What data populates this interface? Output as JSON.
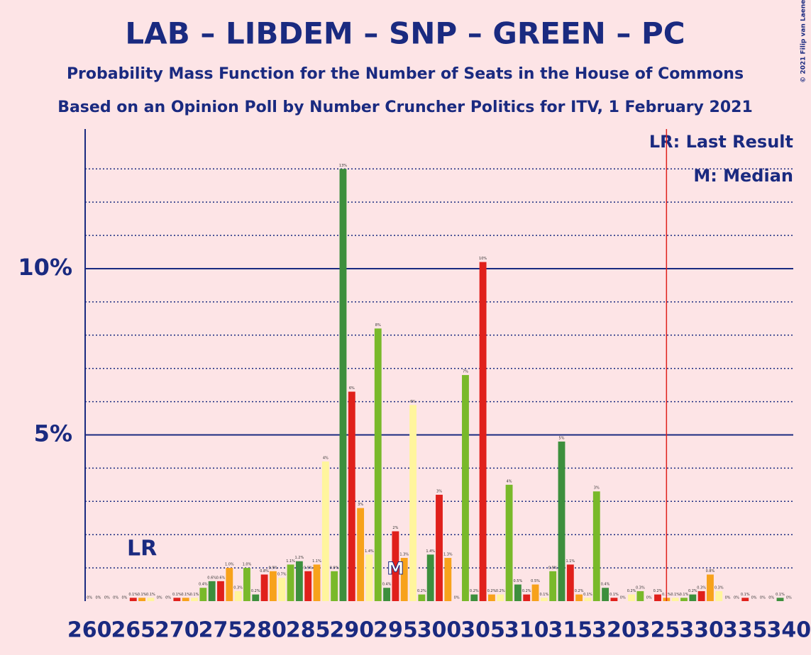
{
  "chart_data": {
    "type": "bar",
    "title": "LAB – LIBDEM – SNP – GREEN – PC",
    "subtitle": "Probability Mass Function for the Number of Seats in the House of Commons",
    "subtitle2": "Based on an Opinion Poll by Number Cruncher Politics for ITV, 1 February 2021",
    "copyright": "© 2021 Filip van Laenen",
    "legend": [
      "LR: Last Result",
      "M: Median"
    ],
    "last_result": {
      "x": 266,
      "label": "LR"
    },
    "median": {
      "x": 295,
      "label": "M"
    },
    "threshold_line": 326,
    "x": [
      260,
      261,
      262,
      263,
      264,
      265,
      266,
      267,
      268,
      269,
      270,
      271,
      272,
      273,
      274,
      275,
      276,
      277,
      278,
      279,
      280,
      281,
      282,
      283,
      284,
      285,
      286,
      287,
      288,
      289,
      290,
      291,
      292,
      293,
      294,
      295,
      296,
      297,
      298,
      299,
      300,
      301,
      302,
      303,
      304,
      305,
      306,
      307,
      308,
      309,
      310,
      311,
      312,
      313,
      314,
      315,
      316,
      317,
      318,
      319,
      320,
      321,
      322,
      323,
      324,
      325,
      326,
      327,
      328,
      329,
      330,
      331,
      332,
      333,
      334,
      335,
      336,
      337,
      338,
      339,
      340
    ],
    "values": [
      0,
      0,
      0,
      0,
      0,
      0.1,
      0.1,
      0.1,
      0,
      0,
      0.1,
      0.1,
      0.1,
      0.4,
      0.6,
      0.6,
      1.0,
      0.3,
      1.0,
      0.2,
      0.8,
      0.9,
      0.7,
      1.1,
      1.2,
      0.9,
      1.1,
      4.2,
      0.9,
      13.0,
      6.3,
      2.8,
      1.4,
      8.2,
      0.4,
      2.1,
      1.3,
      5.9,
      0.2,
      1.4,
      3.2,
      1.3,
      0,
      6.8,
      0.2,
      10.2,
      0.2,
      0.2,
      3.5,
      0.5,
      0.2,
      0.5,
      0.1,
      0.9,
      4.8,
      1.1,
      0.2,
      0.1,
      3.3,
      0.4,
      0.1,
      0,
      0.2,
      0.3,
      0,
      0.2,
      0.1,
      0.1,
      0.1,
      0.2,
      0.3,
      0.8,
      0.3,
      0,
      0,
      0.1,
      0,
      0,
      0,
      0.1,
      0
    ],
    "value_labels": [
      "0%",
      "0%",
      "0%",
      "0%",
      "0%",
      "0.1%",
      "0.1%",
      "0.1%",
      "0%",
      "0%",
      "0.1%",
      "0.1%",
      "0.1%",
      "0.4%",
      "0.6%",
      "0.6%",
      "1.0%",
      "0.3%",
      "1.0%",
      "0.2%",
      "0.8%",
      "0.9%",
      "0.7%",
      "1.1%",
      "1.2%",
      "0.9%",
      "1.1%",
      "4%",
      "0.9%",
      "13%",
      "6%",
      "3%",
      "1.4%",
      "8%",
      "0.4%",
      "2%",
      "1.3%",
      "6%",
      "0.2%",
      "1.4%",
      "3%",
      "1.3%",
      "0%",
      "7%",
      "0.2%",
      "10%",
      "0.2%",
      "0.2%",
      "4%",
      "0.5%",
      "0.2%",
      "0.5%",
      "0.1%",
      "0.9%",
      "5%",
      "1.1%",
      "0.2%",
      "0.1%",
      "3%",
      "0.4%",
      "0.1%",
      "0%",
      "0.2%",
      "0.3%",
      "0%",
      "0.2%",
      "0.1%",
      "0.1%",
      "0.1%",
      "0.2%",
      "0.3%",
      "0.8%",
      "0.3%",
      "0%",
      "0%",
      "0.1%",
      "0%",
      "0%",
      "0%",
      "0.1%",
      "0%"
    ],
    "color_cycle": [
      "#e0201b",
      "#f7a21b",
      "#fff59d",
      "#79b92a",
      "#3d8f3d"
    ],
    "xlim": [
      259.5,
      340.5
    ],
    "xticks": [
      260,
      265,
      270,
      275,
      280,
      285,
      290,
      295,
      300,
      305,
      310,
      315,
      320,
      325,
      330,
      335,
      340
    ],
    "ylim": [
      0,
      14.2
    ],
    "yticks": [
      {
        "value": 5,
        "label": "5%"
      },
      {
        "value": 10,
        "label": "10%"
      }
    ],
    "minor_yticks": [
      1,
      2,
      3,
      4,
      6,
      7,
      8,
      9,
      11,
      12,
      13
    ]
  }
}
